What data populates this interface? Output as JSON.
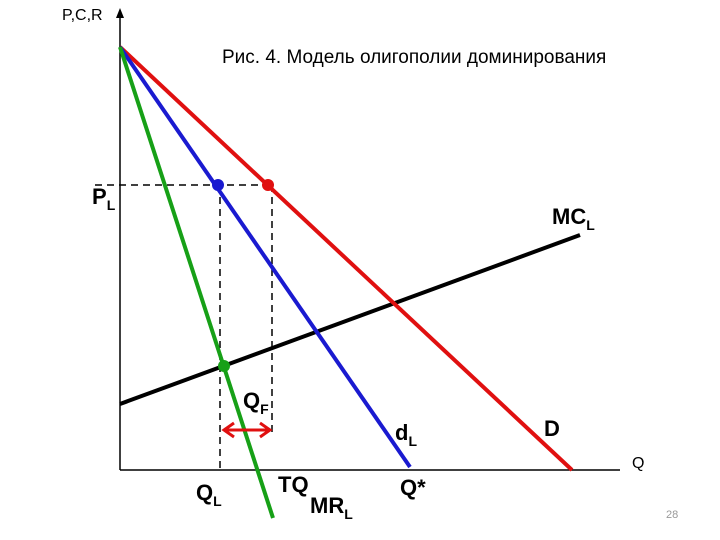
{
  "axes": {
    "y_label": "P,C,R",
    "x_label": "Q"
  },
  "title": "Рис. 4. Модель олигополии доминирования",
  "labels": {
    "price_leader": {
      "text": "P",
      "sub": "L"
    },
    "mc_leader": {
      "text": "MC",
      "sub": "L"
    },
    "q_followers": {
      "text": "Q",
      "sub": "F"
    },
    "d_leader": {
      "text": "d",
      "sub": "L"
    },
    "demand": {
      "text": "D"
    },
    "q_leader": {
      "text": "Q",
      "sub": "L"
    },
    "total_q": {
      "text": "TQ"
    },
    "mr_leader": {
      "text": "MR",
      "sub": "L"
    },
    "q_star": {
      "text": "Q*"
    }
  },
  "page_number": "28"
}
